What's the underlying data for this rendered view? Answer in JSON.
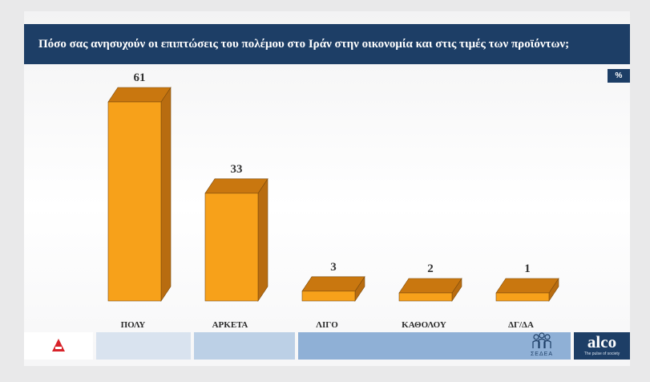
{
  "header": {
    "title": "Πόσο σας ανησυχούν οι επιπτώσεις του πολέμου στο Ιράν στην οικονομία και στις τιμές των προϊόντων;",
    "unit_badge": "%"
  },
  "footer": {
    "brand": "alco",
    "brand_tagline": "The pulse of society",
    "partner": "ΣΕΔΕΑ",
    "colors": {
      "bar_dark": "#1d3e66",
      "seg_light": "#d9e3ef",
      "seg_mid": "#bcd0e6",
      "seg_strong": "#8fb0d6"
    }
  },
  "chart_data": {
    "type": "bar",
    "categories": [
      "ΠΟΛΥ",
      "ΑΡΚΕΤΑ",
      "ΛΙΓΟ",
      "ΚΑΘΟΛΟΥ",
      "ΔΓ/ΔΑ"
    ],
    "values": [
      61,
      33,
      3,
      2,
      1
    ],
    "value_labels": [
      "61",
      "33",
      "3",
      "2",
      "1"
    ],
    "ylim": [
      0,
      61
    ],
    "grid": false,
    "colors": {
      "front": "#f7a11a",
      "side": "#b86c10",
      "top": "#c9770f"
    }
  }
}
